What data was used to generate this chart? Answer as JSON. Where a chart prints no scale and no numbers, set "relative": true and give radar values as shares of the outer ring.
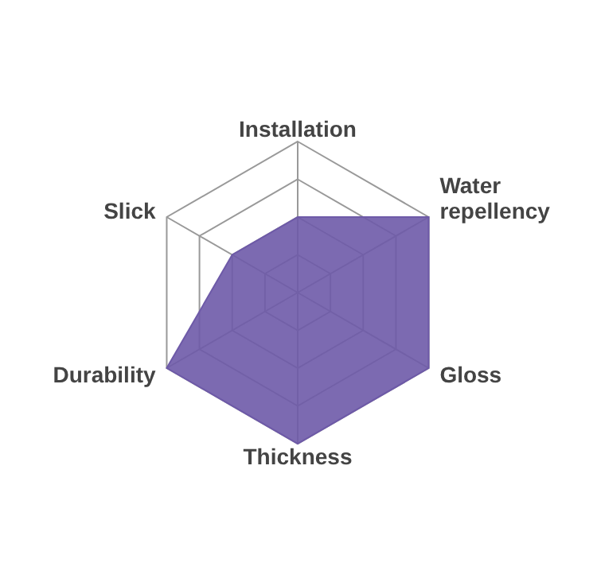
{
  "chart_data": {
    "type": "radar",
    "categories": [
      "Installation",
      "Water repellency",
      "Gloss",
      "Thickness",
      "Durability",
      "Slick"
    ],
    "relative": true,
    "series": [
      {
        "color": "#6e5aa8",
        "values": [
          0.5,
          1,
          1,
          1,
          1,
          0.5
        ]
      }
    ],
    "grid": true,
    "legend": false
  }
}
